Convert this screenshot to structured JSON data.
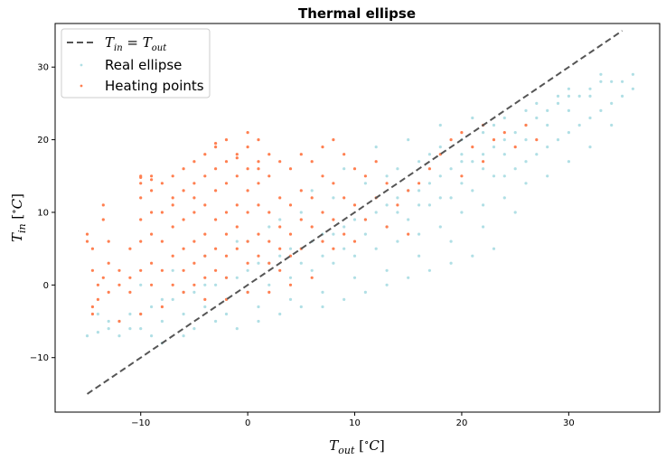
{
  "chart_data": {
    "type": "scatter",
    "title": "Thermal ellipse",
    "xlabel": "T_out [°C]",
    "ylabel": "T_in [°C]",
    "xlim": [
      -18,
      38.5
    ],
    "ylim": [
      -17.5,
      36
    ],
    "xticks": [
      -10,
      0,
      10,
      20,
      30
    ],
    "yticks": [
      -10,
      0,
      10,
      20,
      30
    ],
    "grid": false,
    "legend_position": "upper-left",
    "legend": [
      "T_in = T_out",
      "Real ellipse",
      "Heating points"
    ],
    "series": [
      {
        "name": "Real ellipse",
        "kind": "scatter",
        "color": "#b0dfe5",
        "points": [
          [
            -15,
            -7
          ],
          [
            -14,
            -6.5
          ],
          [
            -13,
            -6
          ],
          [
            -12,
            -5
          ],
          [
            -11,
            -4
          ],
          [
            -10,
            -4
          ],
          [
            -9,
            -3
          ],
          [
            -8,
            -2
          ],
          [
            -7,
            -2
          ],
          [
            -6,
            -1
          ],
          [
            -5,
            -1
          ],
          [
            -4,
            0
          ],
          [
            -3,
            0
          ],
          [
            -2,
            1
          ],
          [
            -1,
            1
          ],
          [
            0,
            2
          ],
          [
            1,
            3
          ],
          [
            2,
            3
          ],
          [
            3,
            4
          ],
          [
            4,
            5
          ],
          [
            5,
            5
          ],
          [
            6,
            6
          ],
          [
            7,
            7
          ],
          [
            8,
            7
          ],
          [
            9,
            8
          ],
          [
            10,
            9
          ],
          [
            11,
            9
          ],
          [
            12,
            10
          ],
          [
            13,
            11
          ],
          [
            14,
            12
          ],
          [
            15,
            13
          ],
          [
            16,
            13
          ],
          [
            17,
            14
          ],
          [
            18,
            15
          ],
          [
            19,
            16
          ],
          [
            20,
            17
          ],
          [
            21,
            17
          ],
          [
            22,
            18
          ],
          [
            23,
            19
          ],
          [
            24,
            20
          ],
          [
            25,
            21
          ],
          [
            26,
            22
          ],
          [
            27,
            23
          ],
          [
            28,
            24
          ],
          [
            29,
            25
          ],
          [
            30,
            26
          ],
          [
            31,
            26
          ],
          [
            32,
            27
          ],
          [
            33,
            28
          ],
          [
            34,
            28
          ],
          [
            35,
            28
          ],
          [
            36,
            29
          ],
          [
            -12,
            -7
          ],
          [
            -10,
            -6
          ],
          [
            -8,
            -5
          ],
          [
            -6,
            -4
          ],
          [
            -4,
            -3
          ],
          [
            -2,
            -2
          ],
          [
            0,
            -1
          ],
          [
            2,
            0
          ],
          [
            4,
            1
          ],
          [
            6,
            2
          ],
          [
            8,
            3
          ],
          [
            10,
            4
          ],
          [
            12,
            5
          ],
          [
            14,
            6
          ],
          [
            16,
            7
          ],
          [
            18,
            8
          ],
          [
            20,
            10
          ],
          [
            22,
            11
          ],
          [
            24,
            12
          ],
          [
            26,
            14
          ],
          [
            28,
            15
          ],
          [
            30,
            17
          ],
          [
            32,
            19
          ],
          [
            34,
            22
          ],
          [
            -8,
            -8
          ],
          [
            -5,
            -6
          ],
          [
            -2,
            -4
          ],
          [
            1,
            -3
          ],
          [
            4,
            -2
          ],
          [
            7,
            -1
          ],
          [
            10,
            1
          ],
          [
            13,
            2
          ],
          [
            16,
            4
          ],
          [
            19,
            6
          ],
          [
            22,
            8
          ],
          [
            25,
            10
          ],
          [
            -10,
            0
          ],
          [
            -7,
            2
          ],
          [
            -4,
            4
          ],
          [
            -1,
            6
          ],
          [
            2,
            8
          ],
          [
            5,
            10
          ],
          [
            8,
            12
          ],
          [
            11,
            14
          ],
          [
            14,
            16
          ],
          [
            17,
            18
          ],
          [
            20,
            20
          ],
          [
            23,
            22
          ],
          [
            26,
            24
          ],
          [
            29,
            26
          ],
          [
            0,
            6
          ],
          [
            3,
            9
          ],
          [
            6,
            13
          ],
          [
            9,
            16
          ],
          [
            12,
            19
          ],
          [
            15,
            20
          ],
          [
            18,
            22
          ],
          [
            21,
            23
          ],
          [
            13,
            15
          ],
          [
            16,
            17
          ],
          [
            18,
            19
          ],
          [
            20,
            18
          ],
          [
            22,
            21
          ],
          [
            24,
            23
          ],
          [
            27,
            25
          ],
          [
            30,
            27
          ],
          [
            33,
            29
          ],
          [
            5,
            3
          ],
          [
            7,
            4
          ],
          [
            9,
            5
          ],
          [
            11,
            7
          ],
          [
            13,
            8
          ],
          [
            15,
            9
          ],
          [
            17,
            11
          ],
          [
            19,
            12
          ],
          [
            21,
            13
          ],
          [
            23,
            15
          ],
          [
            25,
            16
          ],
          [
            27,
            18
          ],
          [
            29,
            20
          ],
          [
            31,
            22
          ],
          [
            33,
            24
          ],
          [
            35,
            26
          ],
          [
            -3,
            -5
          ],
          [
            -1,
            -6
          ],
          [
            1,
            -5
          ],
          [
            3,
            -4
          ],
          [
            5,
            -3
          ],
          [
            7,
            -3
          ],
          [
            9,
            -2
          ],
          [
            11,
            -1
          ],
          [
            13,
            0
          ],
          [
            15,
            1
          ],
          [
            17,
            2
          ],
          [
            19,
            3
          ],
          [
            21,
            4
          ],
          [
            23,
            5
          ],
          [
            -6,
            -7
          ],
          [
            -9,
            -7
          ],
          [
            -11,
            -6
          ],
          [
            -13,
            -5
          ],
          [
            -14,
            -4
          ],
          [
            24,
            15
          ],
          [
            26,
            17
          ],
          [
            28,
            19
          ],
          [
            30,
            21
          ],
          [
            32,
            23
          ],
          [
            34,
            25
          ],
          [
            36,
            27
          ],
          [
            14,
            10
          ],
          [
            16,
            11
          ],
          [
            18,
            12
          ],
          [
            20,
            14
          ],
          [
            22,
            16
          ],
          [
            24,
            18
          ],
          [
            26,
            20
          ],
          [
            28,
            22
          ],
          [
            30,
            24
          ],
          [
            32,
            26
          ]
        ]
      },
      {
        "name": "Heating points",
        "kind": "scatter",
        "color": "#ff7f50",
        "points": [
          [
            -15,
            6
          ],
          [
            -15,
            7
          ],
          [
            -14.5,
            5
          ],
          [
            -14.5,
            2
          ],
          [
            -14.5,
            -3
          ],
          [
            -14.5,
            -4
          ],
          [
            -14,
            -2
          ],
          [
            -14,
            0
          ],
          [
            -13.5,
            1
          ],
          [
            -13.5,
            9
          ],
          [
            -13.5,
            11
          ],
          [
            -13,
            6
          ],
          [
            -13,
            3
          ],
          [
            -13,
            -1
          ],
          [
            -12,
            0
          ],
          [
            -12,
            2
          ],
          [
            -11,
            -1
          ],
          [
            -11,
            1
          ],
          [
            -11,
            5
          ],
          [
            -10,
            15
          ],
          [
            -10,
            14
          ],
          [
            -10,
            12
          ],
          [
            -10,
            9
          ],
          [
            -10,
            6
          ],
          [
            -10,
            2
          ],
          [
            -9,
            15
          ],
          [
            -9,
            13
          ],
          [
            -9,
            10
          ],
          [
            -9,
            7
          ],
          [
            -9,
            3
          ],
          [
            -9,
            0
          ],
          [
            -8,
            14
          ],
          [
            -8,
            10
          ],
          [
            -8,
            6
          ],
          [
            -8,
            2
          ],
          [
            -7,
            15
          ],
          [
            -7,
            12
          ],
          [
            -7,
            8
          ],
          [
            -7,
            4
          ],
          [
            -7,
            0
          ],
          [
            -6,
            16
          ],
          [
            -6,
            13
          ],
          [
            -6,
            9
          ],
          [
            -6,
            5
          ],
          [
            -6,
            2
          ],
          [
            -5,
            17
          ],
          [
            -5,
            14
          ],
          [
            -5,
            10
          ],
          [
            -5,
            6
          ],
          [
            -5,
            3
          ],
          [
            -5,
            0
          ],
          [
            -4,
            18
          ],
          [
            -4,
            15
          ],
          [
            -4,
            11
          ],
          [
            -4,
            7
          ],
          [
            -4,
            4
          ],
          [
            -4,
            1
          ],
          [
            -3,
            19
          ],
          [
            -3,
            16
          ],
          [
            -3,
            13
          ],
          [
            -3,
            9
          ],
          [
            -3,
            5
          ],
          [
            -3,
            2
          ],
          [
            -2,
            20
          ],
          [
            -2,
            17
          ],
          [
            -2,
            14
          ],
          [
            -2,
            10
          ],
          [
            -2,
            7
          ],
          [
            -2,
            4
          ],
          [
            -2,
            1
          ],
          [
            -1,
            18
          ],
          [
            -1,
            15
          ],
          [
            -1,
            11
          ],
          [
            -1,
            8
          ],
          [
            -1,
            5
          ],
          [
            0,
            21
          ],
          [
            0,
            19
          ],
          [
            0,
            16
          ],
          [
            0,
            13
          ],
          [
            0,
            10
          ],
          [
            0,
            6
          ],
          [
            0,
            3
          ],
          [
            1,
            20
          ],
          [
            1,
            17
          ],
          [
            1,
            14
          ],
          [
            1,
            11
          ],
          [
            1,
            7
          ],
          [
            1,
            4
          ],
          [
            2,
            18
          ],
          [
            2,
            15
          ],
          [
            2,
            10
          ],
          [
            2,
            6
          ],
          [
            2,
            3
          ],
          [
            3,
            17
          ],
          [
            3,
            12
          ],
          [
            3,
            8
          ],
          [
            3,
            5
          ],
          [
            3,
            2
          ],
          [
            4,
            16
          ],
          [
            4,
            11
          ],
          [
            4,
            7
          ],
          [
            4,
            4
          ],
          [
            5,
            18
          ],
          [
            5,
            13
          ],
          [
            5,
            9
          ],
          [
            5,
            5
          ],
          [
            6,
            17
          ],
          [
            6,
            12
          ],
          [
            6,
            8
          ],
          [
            7,
            19
          ],
          [
            7,
            15
          ],
          [
            7,
            10
          ],
          [
            7,
            6
          ],
          [
            8,
            20
          ],
          [
            8,
            14
          ],
          [
            8,
            9
          ],
          [
            8,
            5
          ],
          [
            9,
            18
          ],
          [
            9,
            12
          ],
          [
            9,
            7
          ],
          [
            10,
            16
          ],
          [
            10,
            11
          ],
          [
            10,
            6
          ],
          [
            11,
            15
          ],
          [
            11,
            9
          ],
          [
            12,
            17
          ],
          [
            12,
            12
          ],
          [
            13,
            14
          ],
          [
            13,
            8
          ],
          [
            14,
            11
          ],
          [
            15,
            13
          ],
          [
            15,
            7
          ],
          [
            16,
            14
          ],
          [
            17,
            16
          ],
          [
            18,
            18
          ],
          [
            19,
            20
          ],
          [
            20,
            21
          ],
          [
            20,
            15
          ],
          [
            21,
            19
          ],
          [
            22,
            22
          ],
          [
            22,
            17
          ],
          [
            23,
            20
          ],
          [
            24,
            21
          ],
          [
            25,
            19
          ],
          [
            26,
            22
          ],
          [
            27,
            20
          ],
          [
            -6,
            -1
          ],
          [
            -4,
            -2
          ],
          [
            -2,
            -2
          ],
          [
            0,
            -1
          ],
          [
            2,
            -1
          ],
          [
            4,
            0
          ],
          [
            6,
            1
          ],
          [
            -8,
            -3
          ],
          [
            -10,
            -4
          ],
          [
            -12,
            -5
          ],
          [
            -3,
            19.5
          ],
          [
            -1,
            17.5
          ],
          [
            1,
            16
          ],
          [
            -5,
            12
          ],
          [
            -7,
            11
          ],
          [
            -9,
            14.5
          ],
          [
            -10,
            14.8
          ]
        ]
      },
      {
        "name": "T_in = T_out",
        "kind": "line",
        "style": "dashed",
        "color": "#555555",
        "points": [
          [
            -15,
            -15
          ],
          [
            35,
            35
          ]
        ]
      }
    ]
  }
}
